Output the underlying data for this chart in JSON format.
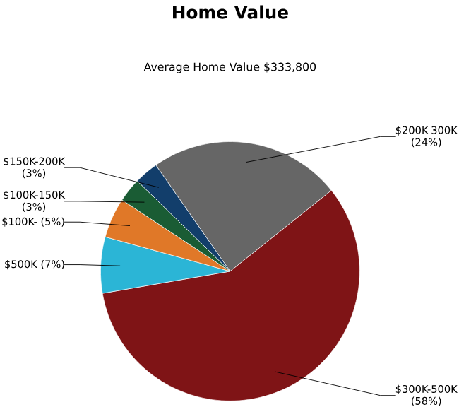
{
  "chart_data": {
    "type": "pie",
    "title": "Home Value",
    "subtitle": "Average Home Value  $333,800",
    "categories": [
      "$200K-300K",
      "$300K-500K",
      "$500K",
      "$100K-",
      "$100K-150K",
      "$150K-200K"
    ],
    "values": [
      24,
      58,
      7,
      5,
      3,
      3
    ],
    "value_labels": [
      "(24%)",
      "(58%)",
      "(7%)",
      "(5%)",
      "(3%)",
      "(3%)"
    ],
    "colors": [
      "#666666",
      "#7f1416",
      "#2bb5d6",
      "#e07828",
      "#1a5c34",
      "#123e6b"
    ]
  }
}
